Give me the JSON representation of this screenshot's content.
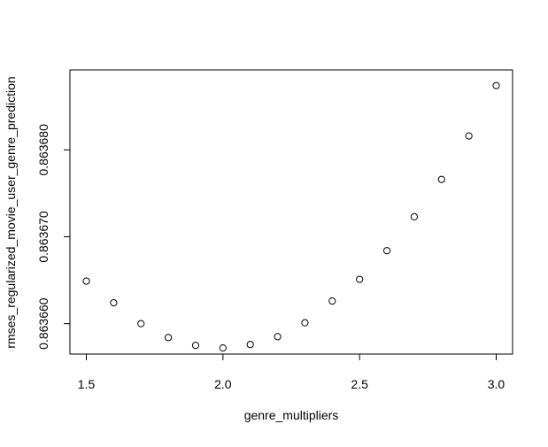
{
  "chart_data": {
    "type": "scatter",
    "title": "",
    "xlabel": "genre_multipliers",
    "ylabel": "rmses_regularized_movie_user_genre_prediction",
    "xlim": [
      1.44,
      3.06
    ],
    "ylim": [
      0.8636565,
      0.8636892
    ],
    "x_ticks": [
      1.5,
      2.0,
      2.5,
      3.0
    ],
    "x_tick_labels": [
      "1.5",
      "2.0",
      "2.5",
      "3.0"
    ],
    "y_ticks": [
      0.86366,
      0.86367,
      0.86368
    ],
    "y_tick_labels": [
      "0.863660",
      "0.863670",
      "0.863680"
    ],
    "grid": false,
    "marker": "open-circle",
    "series": [
      {
        "x": [
          1.5,
          1.6,
          1.7,
          1.8,
          1.9,
          2.0,
          2.1,
          2.2,
          2.3,
          2.4,
          2.5,
          2.6,
          2.7,
          2.8,
          2.9,
          3.0
        ],
        "values": [
          0.8636649,
          0.8636624,
          0.86366,
          0.8636584,
          0.8636575,
          0.8636572,
          0.8636576,
          0.8636585,
          0.8636601,
          0.8636626,
          0.8636651,
          0.8636684,
          0.8636723,
          0.8636766,
          0.8636816,
          0.8636874
        ]
      }
    ]
  }
}
